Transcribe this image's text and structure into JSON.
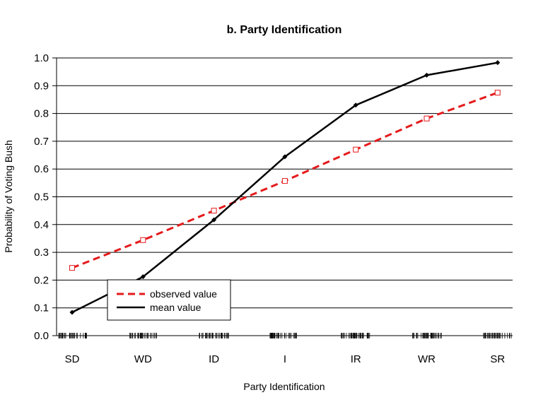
{
  "chart_data": {
    "type": "line",
    "title": "b. Party Identification",
    "xlabel": "Party Identification",
    "ylabel": "Probability of Voting Bush",
    "categories": [
      "SD",
      "WD",
      "ID",
      "I",
      "IR",
      "WR",
      "SR"
    ],
    "ylim": [
      0,
      1
    ],
    "yticks": [
      "0.0",
      "0.1",
      "0.2",
      "0.3",
      "0.4",
      "0.5",
      "0.6",
      "0.7",
      "0.8",
      "0.9",
      "1.0"
    ],
    "grid": true,
    "legend": "bottom-left",
    "series": [
      {
        "name": "observed value",
        "values": [
          0.244,
          0.344,
          0.45,
          0.557,
          0.67,
          0.782,
          0.875
        ],
        "color": "#e41a1c",
        "style": "dashed",
        "marker": "open-square"
      },
      {
        "name": "mean value",
        "values": [
          0.084,
          0.212,
          0.417,
          0.644,
          0.83,
          0.938,
          0.983
        ],
        "color": "#000000",
        "style": "solid",
        "marker": "diamond"
      }
    ],
    "rug": true
  }
}
